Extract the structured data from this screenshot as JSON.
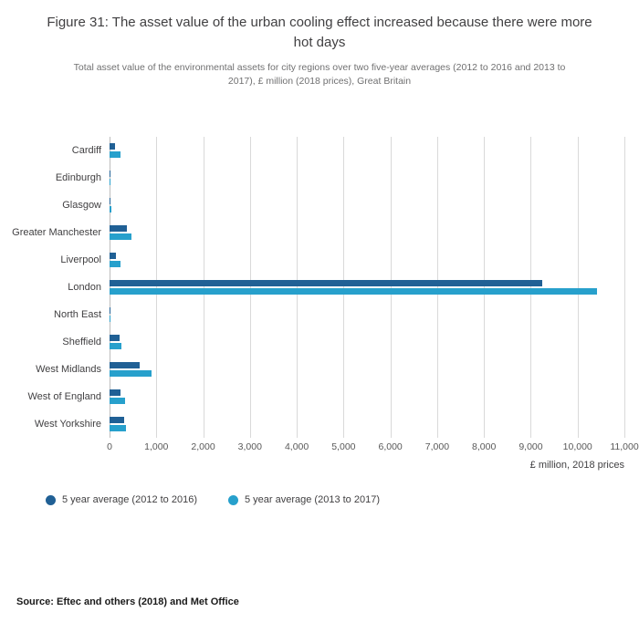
{
  "header": {
    "title": "Figure 31: The asset value of the urban cooling effect increased because there were more hot days",
    "subtitle": "Total asset value of the environmental assets for city regions over two five-year averages (2012 to 2016 and 2013 to 2017), £ million (2018 prices), Great Britain"
  },
  "chart_data": {
    "type": "bar",
    "orientation": "horizontal",
    "title": "Figure 31: The asset value of the urban cooling effect increased because there were more hot days",
    "categories": [
      "Cardiff",
      "Edinburgh",
      "Glasgow",
      "Greater Manchester",
      "Liverpool",
      "London",
      "North East",
      "Sheffield",
      "West Midlands",
      "West of England",
      "West Yorkshire"
    ],
    "series": [
      {
        "name": "5 year average (2012 to 2016)",
        "color": "#206095",
        "values": [
          110,
          4,
          12,
          380,
          130,
          9250,
          14,
          210,
          650,
          230,
          310
        ]
      },
      {
        "name": "5 year average (2013 to 2017)",
        "color": "#27A0CC",
        "values": [
          230,
          6,
          40,
          470,
          230,
          10420,
          25,
          260,
          900,
          330,
          350
        ]
      }
    ],
    "xlabel": "£ million, 2018 prices",
    "xlim": [
      0,
      11000
    ],
    "xticks": [
      {
        "value": 0,
        "label": "0"
      },
      {
        "value": 1000,
        "label": "1,000"
      },
      {
        "value": 2000,
        "label": "2,000"
      },
      {
        "value": 3000,
        "label": "3,000"
      },
      {
        "value": 4000,
        "label": "4,000"
      },
      {
        "value": 5000,
        "label": "5,000"
      },
      {
        "value": 6000,
        "label": "6,000"
      },
      {
        "value": 7000,
        "label": "7,000"
      },
      {
        "value": 8000,
        "label": "8,000"
      },
      {
        "value": 9000,
        "label": "9,000"
      },
      {
        "value": 10000,
        "label": "10,000"
      },
      {
        "value": 11000,
        "label": "11,000"
      }
    ],
    "grid": true,
    "legend_position": "bottom"
  },
  "source": "Source: Eftec and others (2018) and Met Office"
}
